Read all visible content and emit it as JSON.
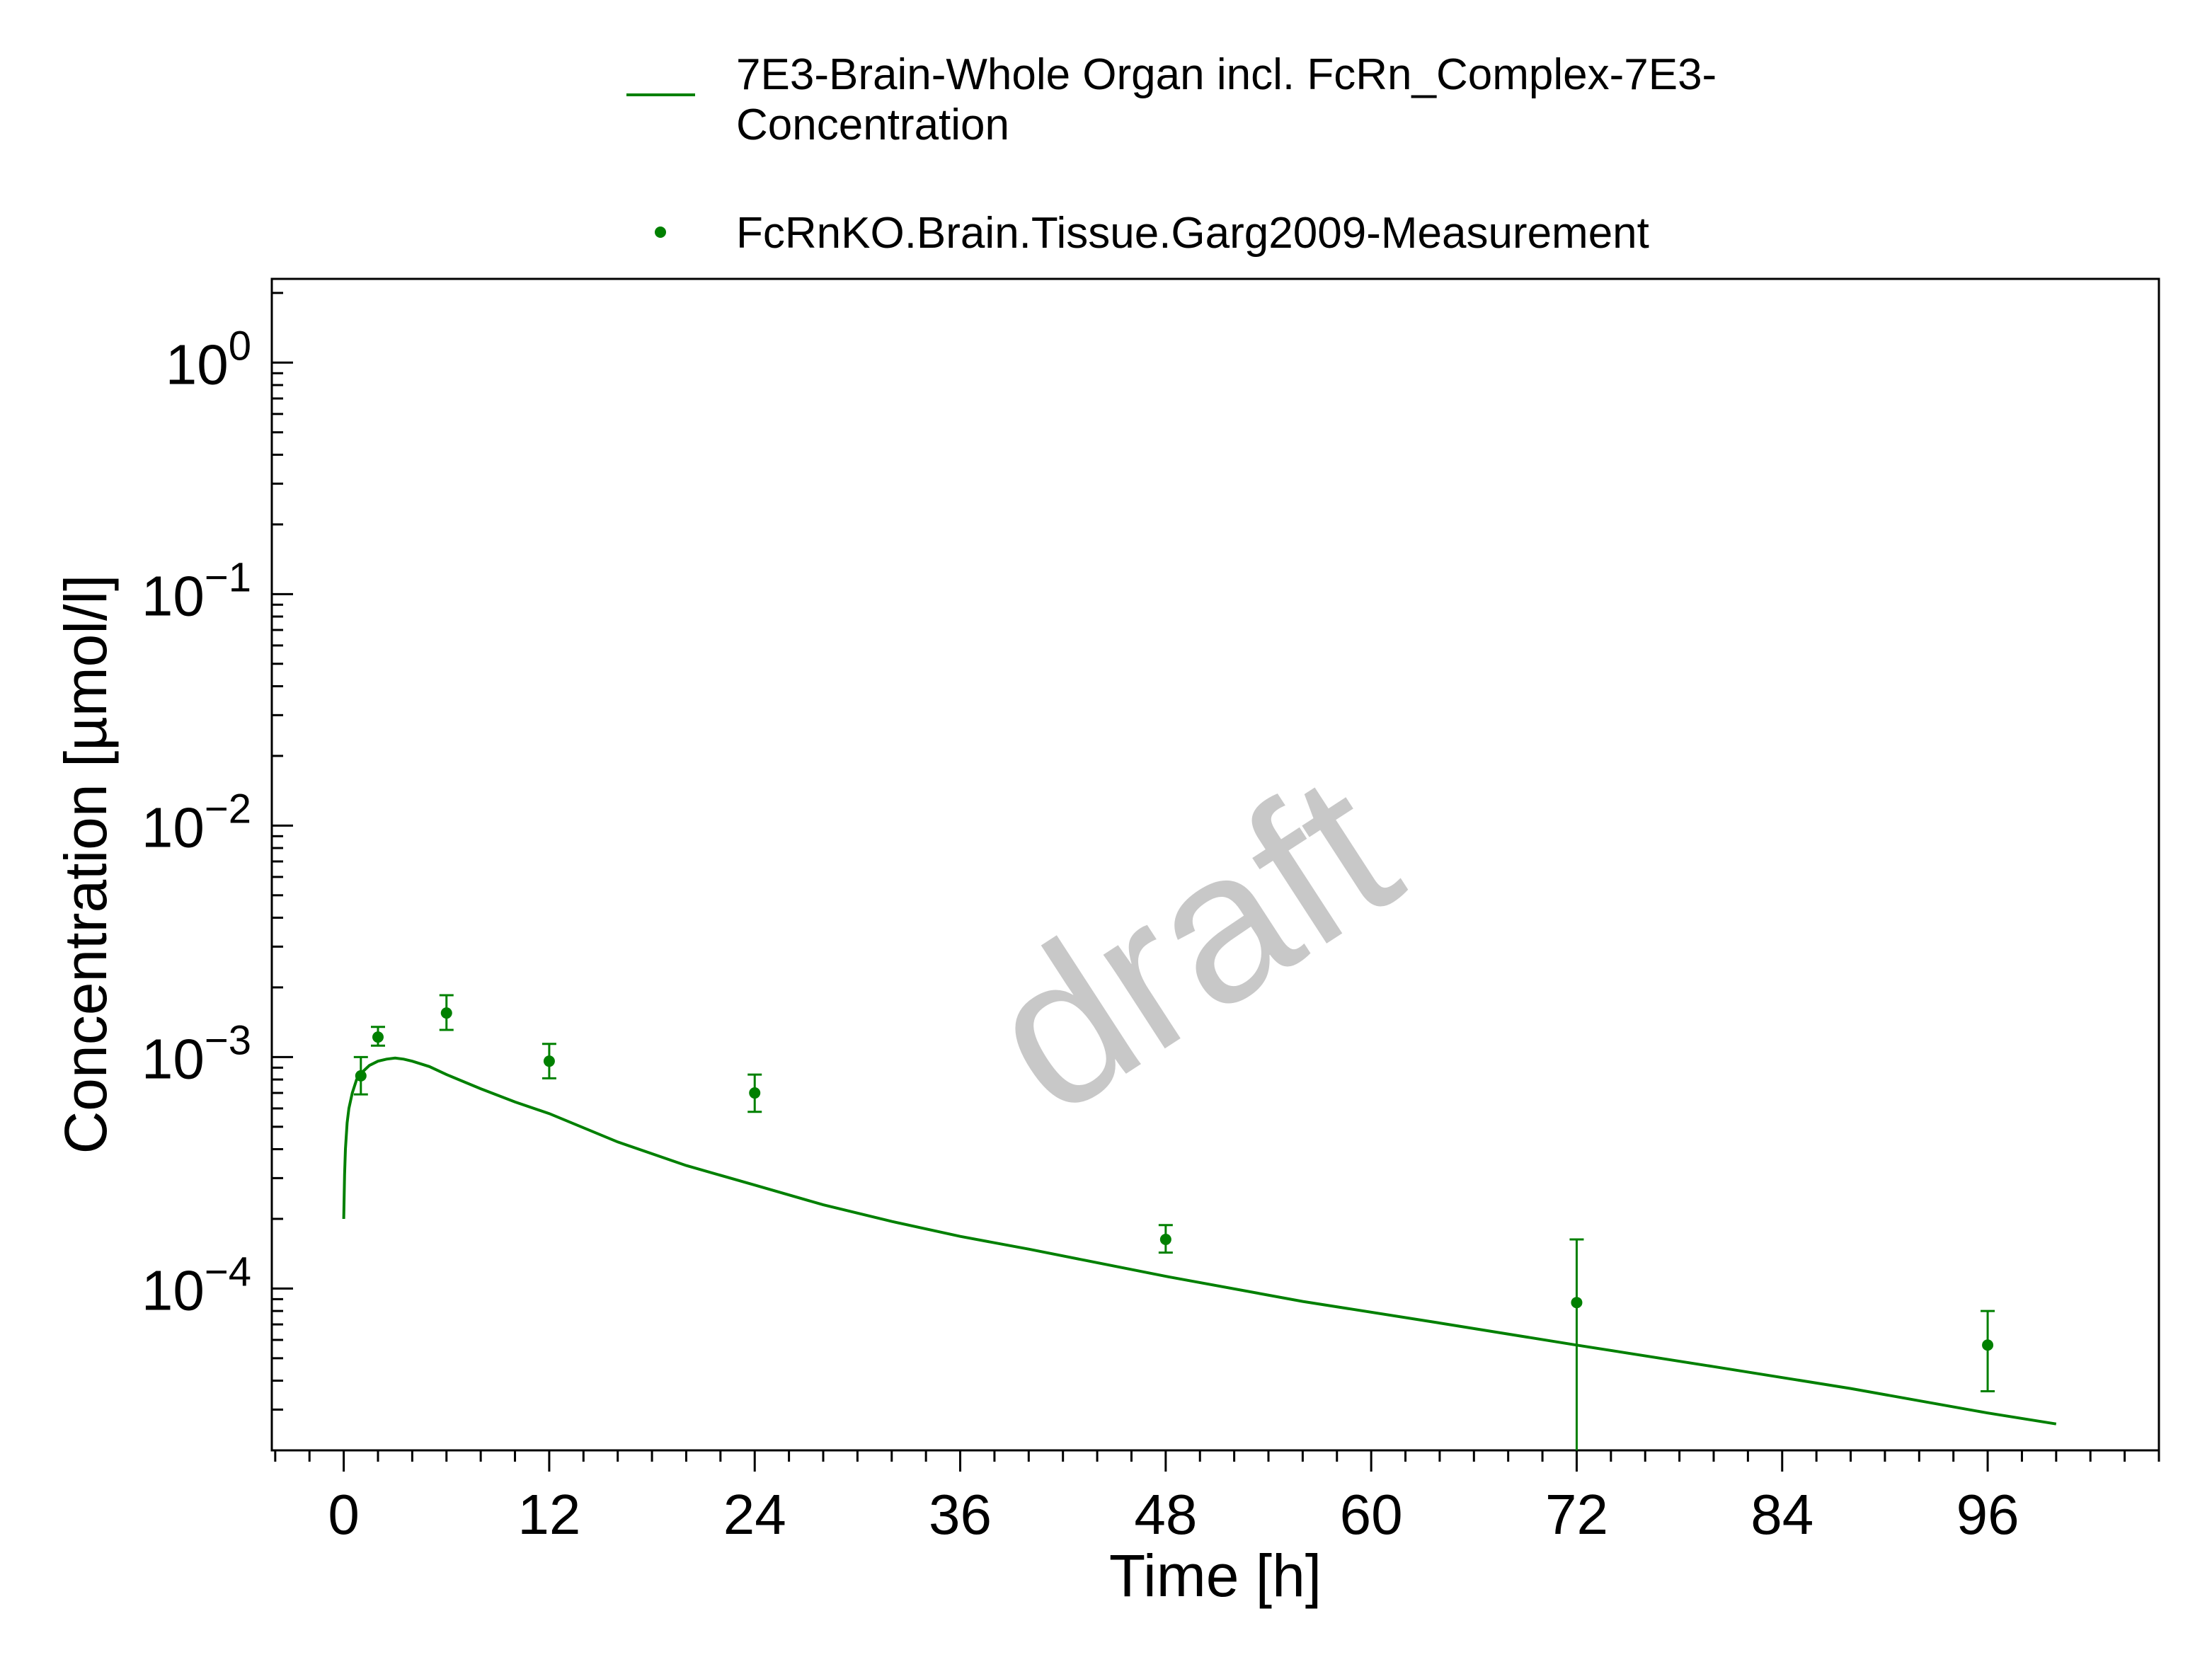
{
  "chart_data": {
    "type": "scatter",
    "xlabel": "Time [h]",
    "ylabel": "Concentration [µmol/l]",
    "xlim": [
      -4.2,
      106
    ],
    "ylim": [
      2e-05,
      2.3
    ],
    "yscale": "log",
    "xticks": [
      0,
      12,
      24,
      36,
      48,
      60,
      72,
      84,
      96
    ],
    "xminor_step": 2,
    "yticks": [
      {
        "value": 1,
        "base": "10",
        "exp": "0"
      },
      {
        "value": 0.1,
        "base": "10",
        "exp": "−1"
      },
      {
        "value": 0.01,
        "base": "10",
        "exp": "−2"
      },
      {
        "value": 0.001,
        "base": "10",
        "exp": "−3"
      },
      {
        "value": 0.0001,
        "base": "10",
        "exp": "−4"
      }
    ],
    "grid": false,
    "legend_position": "top",
    "watermark": "draft",
    "series": [
      {
        "name": "7E3-Brain-Whole Organ incl. FcRn_Complex-7E3-Concentration",
        "legend_lines": [
          "7E3-Brain-Whole Organ incl. FcRn_Complex-7E3-",
          "Concentration"
        ],
        "kind": "line",
        "color": "#008000",
        "x": [
          0,
          0.05,
          0.1,
          0.2,
          0.3,
          0.5,
          0.75,
          1,
          1.5,
          2,
          2.5,
          3,
          3.5,
          4,
          5,
          6,
          8,
          10,
          12,
          16,
          20,
          24,
          28,
          32,
          36,
          40,
          48,
          56,
          64,
          72,
          80,
          88,
          96,
          100
        ],
        "y": [
          0.0002,
          0.00031,
          0.0004,
          0.00052,
          0.0006,
          0.0007,
          0.0008,
          0.00085,
          0.00092,
          0.00096,
          0.00098,
          0.00099,
          0.00098,
          0.00096,
          0.00091,
          0.00084,
          0.00073,
          0.00064,
          0.00057,
          0.00043,
          0.00034,
          0.00028,
          0.00023,
          0.000195,
          0.000168,
          0.000148,
          0.000113,
          8.8e-05,
          7.1e-05,
          5.7e-05,
          4.6e-05,
          3.7e-05,
          2.9e-05,
          2.6e-05
        ]
      },
      {
        "name": "FcRnKO.Brain.Tissue.Garg2009-Measurement",
        "legend_lines": [
          "FcRnKO.Brain.Tissue.Garg2009-Measurement"
        ],
        "kind": "points",
        "color": "#008000",
        "points": [
          {
            "x": 1,
            "y": 0.00083,
            "ylow": 0.00069,
            "yhigh": 0.001
          },
          {
            "x": 2,
            "y": 0.00122,
            "ylow": 0.00112,
            "yhigh": 0.00135
          },
          {
            "x": 6,
            "y": 0.00155,
            "ylow": 0.00131,
            "yhigh": 0.00185
          },
          {
            "x": 12,
            "y": 0.00096,
            "ylow": 0.00081,
            "yhigh": 0.00114
          },
          {
            "x": 24,
            "y": 0.0007,
            "ylow": 0.00058,
            "yhigh": 0.00084
          },
          {
            "x": 48,
            "y": 0.000163,
            "ylow": 0.000143,
            "yhigh": 0.000188
          },
          {
            "x": 72,
            "y": 8.7e-05,
            "ylow": 2e-05,
            "yhigh": 0.000163
          },
          {
            "x": 96,
            "y": 5.7e-05,
            "ylow": 3.6e-05,
            "yhigh": 8e-05
          }
        ]
      }
    ]
  }
}
